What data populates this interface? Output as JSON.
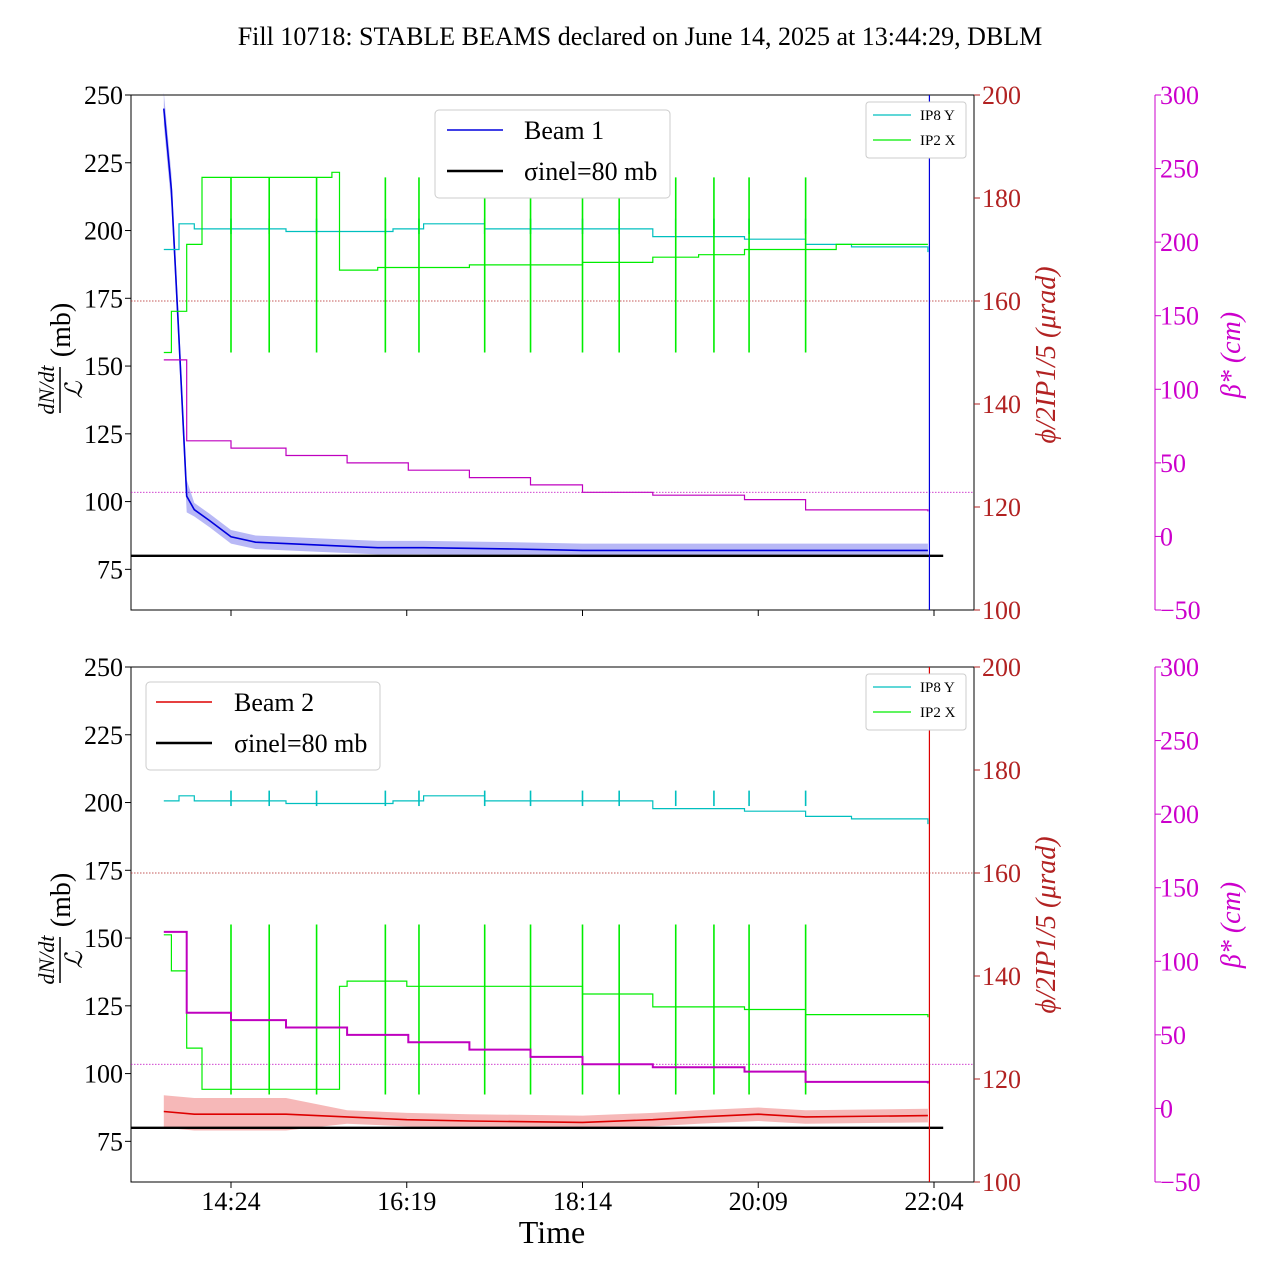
{
  "title": "Fill 10718: STABLE BEAMS declared on June 14, 2025 at 13:44:29, DBLM",
  "x_label": "Time",
  "x_ticks": [
    "14:24",
    "16:19",
    "18:14",
    "20:09",
    "22:04"
  ],
  "colors": {
    "beam1": "#0000dd",
    "beam2": "#dd0000",
    "ip8y": "#00bfbf",
    "ip2x": "#00ee00",
    "beta": "#bf00bf",
    "phi_axis": "#b22222",
    "beta_axis": "#cc00cc",
    "ref": "#000000"
  },
  "panels": [
    {
      "id": "top",
      "legend_main": [
        "Beam 1",
        "σinel=80 mb"
      ],
      "legend_small": [
        "IP8 Y",
        "IP2 X"
      ]
    },
    {
      "id": "bottom",
      "legend_main": [
        "Beam 2",
        "σinel=80 mb"
      ],
      "legend_small": [
        "IP8 Y",
        "IP2 X"
      ]
    }
  ],
  "axes_text": {
    "left_label_num": "dN/dt",
    "left_label_den": "ℒ",
    "left_label_unit": "(mb)",
    "phi_label": "ϕ/2IP1/5 (μrad)",
    "beta_label": "β* (cm)",
    "left_ticks": [
      "75",
      "100",
      "125",
      "150",
      "175",
      "200",
      "225",
      "250"
    ],
    "phi_ticks": [
      "100",
      "120",
      "140",
      "160",
      "180",
      "200"
    ],
    "beta_ticks": [
      "−50",
      "0",
      "50",
      "100",
      "150",
      "200",
      "250",
      "300"
    ]
  },
  "chart_data": [
    {
      "type": "line",
      "panel": "top",
      "x_unit": "time (HH:MM)",
      "x_range": [
        "13:15",
        "22:10"
      ],
      "y_left": {
        "label": "dN/dt / ℒ (mb)",
        "range": [
          60,
          250
        ]
      },
      "y_right_phi": {
        "label": "ϕ/2 IP1/5 (μrad)",
        "range": [
          100,
          200
        ]
      },
      "y_right_beta": {
        "label": "β* (cm)",
        "range": [
          -50,
          300
        ]
      },
      "series": [
        {
          "name": "Beam 1",
          "axis": "left",
          "x": [
            "13:40",
            "13:45",
            "13:50",
            "13:55",
            "14:00",
            "14:10",
            "14:24",
            "14:40",
            "15:20",
            "16:00",
            "16:30",
            "17:30",
            "18:14",
            "19:00",
            "20:00",
            "21:00",
            "22:00"
          ],
          "y": [
            245,
            215,
            160,
            102,
            97,
            93,
            87,
            85,
            84,
            83,
            83,
            82.5,
            82,
            82,
            82,
            82,
            82
          ]
        },
        {
          "name": "σinel=80 mb",
          "axis": "left",
          "x": [
            "13:15",
            "22:10"
          ],
          "y": [
            80,
            80
          ]
        },
        {
          "name": "IP8 Y",
          "axis": "phi",
          "x": [
            "13:40",
            "13:50",
            "14:00",
            "14:24",
            "15:00",
            "16:10",
            "16:30",
            "17:10",
            "18:14",
            "19:00",
            "20:00",
            "20:40",
            "21:10",
            "22:00"
          ],
          "y": [
            170,
            175,
            174,
            174,
            173.5,
            174,
            175,
            174,
            174,
            172.5,
            172,
            171,
            170.5,
            169.5
          ]
        },
        {
          "name": "IP2 X",
          "axis": "phi",
          "x": [
            "13:40",
            "13:45",
            "13:55",
            "14:05",
            "14:24",
            "15:20",
            "15:30",
            "15:35",
            "16:00",
            "17:00",
            "18:14",
            "19:00",
            "19:30",
            "20:00",
            "20:30",
            "21:00",
            "22:00"
          ],
          "y": [
            150,
            158,
            171,
            184,
            184,
            184,
            185,
            166,
            166.5,
            167,
            167.5,
            168.5,
            169,
            170,
            170,
            171,
            171
          ]
        },
        {
          "name": "β* (top)",
          "axis": "beta",
          "x": [
            "13:40",
            "13:55",
            "14:24",
            "15:00",
            "15:40",
            "16:20",
            "17:00",
            "17:40",
            "18:14",
            "19:00",
            "20:00",
            "20:40",
            "22:00"
          ],
          "y": [
            120,
            65,
            60,
            55,
            50,
            45,
            40,
            35,
            30,
            28,
            25,
            18,
            17
          ]
        }
      ],
      "reference_lines": [
        {
          "axis": "phi",
          "value": 160,
          "style": "dotted"
        },
        {
          "axis": "beta",
          "value": 30,
          "style": "dotted"
        }
      ]
    },
    {
      "type": "line",
      "panel": "bottom",
      "x_unit": "time (HH:MM)",
      "x_range": [
        "13:15",
        "22:10"
      ],
      "y_left": {
        "label": "dN/dt / ℒ (mb)",
        "range": [
          60,
          250
        ]
      },
      "y_right_phi": {
        "label": "ϕ/2 IP1/5 (μrad)",
        "range": [
          100,
          200
        ]
      },
      "y_right_beta": {
        "label": "β* (cm)",
        "range": [
          -50,
          300
        ]
      },
      "series": [
        {
          "name": "Beam 2",
          "axis": "left",
          "x": [
            "13:40",
            "14:00",
            "14:24",
            "15:00",
            "15:40",
            "16:19",
            "17:00",
            "18:14",
            "19:00",
            "19:30",
            "20:09",
            "20:40",
            "22:00"
          ],
          "y": [
            86,
            85,
            85,
            85,
            84,
            83,
            82.5,
            82,
            83,
            84,
            85,
            84,
            84.5
          ]
        },
        {
          "name": "σinel=80 mb",
          "axis": "left",
          "x": [
            "13:15",
            "22:10"
          ],
          "y": [
            80,
            80
          ]
        },
        {
          "name": "IP8 Y",
          "axis": "phi",
          "x": [
            "13:40",
            "13:50",
            "14:00",
            "14:24",
            "15:00",
            "16:10",
            "16:30",
            "17:10",
            "18:14",
            "19:00",
            "20:00",
            "20:40",
            "21:10",
            "22:00"
          ],
          "y": [
            174,
            175,
            174,
            174,
            173.5,
            174,
            175,
            174,
            174,
            172.5,
            172,
            171,
            170.5,
            169.5
          ]
        },
        {
          "name": "IP2 X",
          "axis": "phi",
          "x": [
            "13:40",
            "13:45",
            "13:55",
            "14:05",
            "14:24",
            "15:20",
            "15:35",
            "15:40",
            "16:19",
            "17:00",
            "18:14",
            "19:00",
            "20:00",
            "20:40",
            "22:00"
          ],
          "y": [
            148,
            141,
            126,
            118,
            118,
            118,
            138,
            139,
            138,
            138,
            136.5,
            134,
            133.5,
            132.5,
            132
          ]
        },
        {
          "name": "β* (bottom)",
          "axis": "beta",
          "x": [
            "13:40",
            "13:55",
            "14:24",
            "15:00",
            "15:40",
            "16:20",
            "17:00",
            "17:40",
            "18:14",
            "19:00",
            "20:00",
            "20:40",
            "22:00"
          ],
          "y": [
            120,
            65,
            60,
            55,
            50,
            45,
            40,
            35,
            30,
            28,
            25,
            18,
            17
          ]
        }
      ],
      "reference_lines": [
        {
          "axis": "phi",
          "value": 160,
          "style": "dotted"
        },
        {
          "axis": "beta",
          "value": 30,
          "style": "dotted"
        }
      ]
    }
  ]
}
